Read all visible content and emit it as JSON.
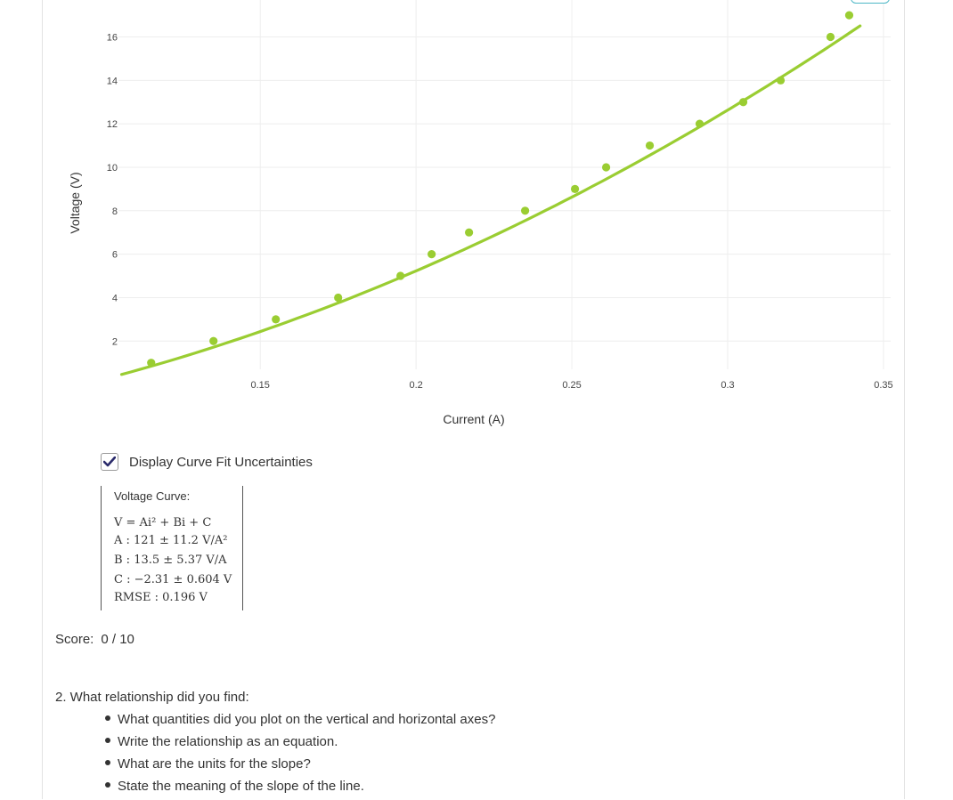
{
  "chart_data": {
    "type": "scatter",
    "xlabel": "Current (A)",
    "ylabel": "Voltage (V)",
    "xlim": [
      0.1045,
      0.3523
    ],
    "ylim": [
      0.7,
      17.7
    ],
    "x_ticks": [
      "0.15",
      "0.2",
      "0.25",
      "0.3",
      "0.35"
    ],
    "y_ticks": [
      "2",
      "4",
      "6",
      "8",
      "10",
      "12",
      "14",
      "16"
    ],
    "grid": true,
    "colors": {
      "points": "#9acd32",
      "fit": "#9acd32"
    },
    "series": [
      {
        "x": [
          0.115,
          0.135,
          0.155,
          0.175,
          0.195,
          0.205,
          0.217,
          0.235,
          0.251,
          0.261,
          0.275,
          0.291,
          0.305,
          0.317,
          0.333,
          0.339
        ],
        "y": [
          1,
          2,
          3,
          4,
          5,
          6,
          7,
          8,
          9,
          10,
          11,
          12,
          13,
          14,
          16,
          17
        ]
      }
    ],
    "fit": {
      "type": "quadratic",
      "A": 121,
      "B": 13.5,
      "C": -2.31
    }
  },
  "checkbox": {
    "label": "Display Curve Fit Uncertainties",
    "checked": true
  },
  "fit_results": {
    "title": "Voltage Curve:",
    "equation": "V = Ai² + Bi + C",
    "a": "A : 121 ± 11.2 V/A²",
    "b": "B : 13.5 ± 5.37 V/A",
    "c": "C : −2.31 ± 0.604 V",
    "rmse": "RMSE : 0.196 V"
  },
  "score": {
    "label": "Score:",
    "value": "0 / 10"
  },
  "question": {
    "text": "2. What relationship did you find:",
    "bullets": [
      "What quantities did you plot on the vertical and horizontal axes?",
      "Write the relationship as an equation.",
      "What are the units for the slope?",
      "State the meaning of the slope of the line."
    ]
  }
}
